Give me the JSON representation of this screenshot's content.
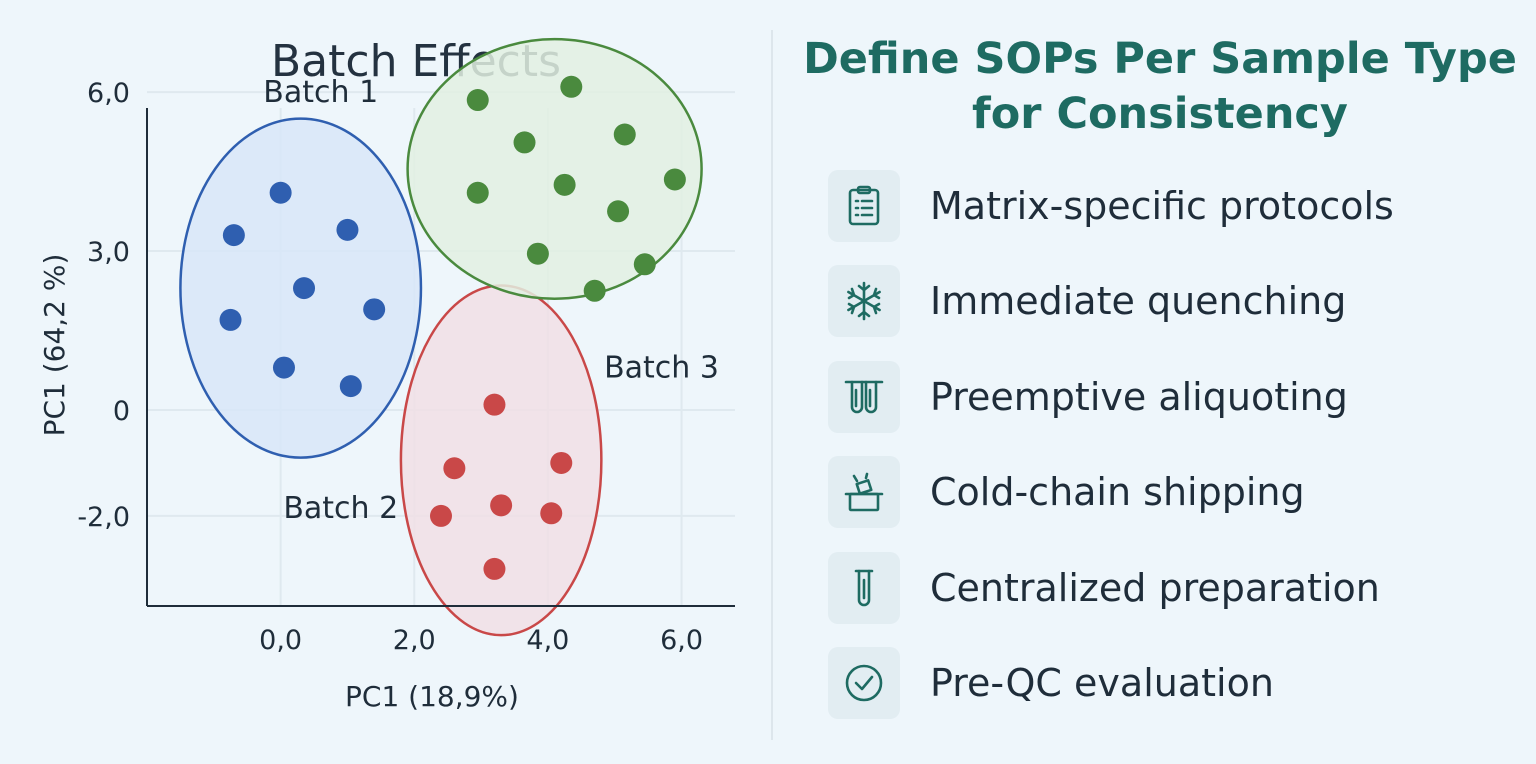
{
  "chart_data": {
    "type": "scatter",
    "title": "Batch Effects",
    "xlabel": "PC1 (18,9%)",
    "ylabel": "PC1 (64,2 %)",
    "xlim": [
      -2.0,
      6.8
    ],
    "ylim": [
      -3.7,
      5.7
    ],
    "xticks": [
      {
        "v": 0,
        "label": "0,0"
      },
      {
        "v": 2,
        "label": "2,0"
      },
      {
        "v": 4,
        "label": "4,0"
      },
      {
        "v": 6,
        "label": "6,0"
      }
    ],
    "yticks": [
      {
        "v": 6,
        "label": "6,0"
      },
      {
        "v": 3,
        "label": "3,0"
      },
      {
        "v": 0,
        "label": "0"
      },
      {
        "v": -2,
        "label": "-2,0"
      }
    ],
    "grid": true,
    "series": [
      {
        "name": "Batch 1",
        "color": "#2f5fb0",
        "fill": "#d8e6f8",
        "label_pos": {
          "x": 0.6,
          "y": 6.0
        },
        "ellipse": {
          "cx": 0.3,
          "cy": 2.3,
          "rx": 1.8,
          "ry": 3.2
        },
        "points": [
          [
            0.0,
            4.1
          ],
          [
            -0.7,
            3.3
          ],
          [
            1.0,
            3.4
          ],
          [
            0.35,
            2.3
          ],
          [
            -0.75,
            1.7
          ],
          [
            1.4,
            1.9
          ],
          [
            0.05,
            0.8
          ],
          [
            1.05,
            0.45
          ]
        ]
      },
      {
        "name": "Batch 2",
        "color": "#c94848",
        "fill": "#f1dfe5",
        "label_pos": {
          "x": 0.9,
          "y": -1.85
        },
        "ellipse": {
          "cx": 3.3,
          "cy": -0.95,
          "rx": 1.5,
          "ry": 3.3
        },
        "points": [
          [
            3.2,
            0.1
          ],
          [
            2.6,
            -1.1
          ],
          [
            4.2,
            -1.0
          ],
          [
            3.3,
            -1.8
          ],
          [
            2.4,
            -2.0
          ],
          [
            4.05,
            -1.95
          ],
          [
            3.2,
            -3.0
          ]
        ]
      },
      {
        "name": "Batch 3",
        "color": "#4a8a3e",
        "fill": "#e2f0e2",
        "label_pos": {
          "x": 5.7,
          "y": 0.8
        },
        "ellipse": {
          "cx": 4.1,
          "cy": 4.55,
          "rx": 2.2,
          "ry": 2.45
        },
        "points": [
          [
            2.95,
            5.85
          ],
          [
            4.35,
            6.1
          ],
          [
            3.65,
            5.05
          ],
          [
            5.15,
            5.2
          ],
          [
            2.95,
            4.1
          ],
          [
            4.25,
            4.25
          ],
          [
            5.05,
            3.75
          ],
          [
            5.9,
            4.35
          ],
          [
            3.85,
            2.95
          ],
          [
            5.45,
            2.75
          ],
          [
            4.7,
            2.25
          ]
        ]
      }
    ]
  },
  "right_panel": {
    "title_line1": "Define SOPs Per Sample Type",
    "title_line2": "for Consistency",
    "accent_color": "#1e6b62",
    "items": [
      {
        "label": "Matrix-specific protocols",
        "icon": "clipboard-checklist-icon"
      },
      {
        "label": "Immediate quenching",
        "icon": "snowflake-icon"
      },
      {
        "label": "Preemptive aliquoting",
        "icon": "test-tubes-icon"
      },
      {
        "label": "Cold-chain shipping",
        "icon": "cooler-box-icon"
      },
      {
        "label": "Centralized preparation",
        "icon": "test-tube-icon"
      },
      {
        "label": "Pre-QC evaluation",
        "icon": "check-circle-icon"
      }
    ]
  }
}
